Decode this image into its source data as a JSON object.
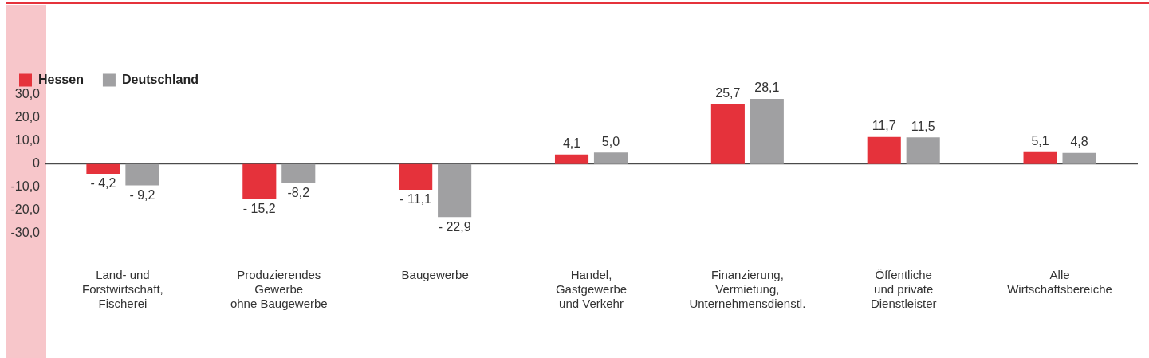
{
  "chart_data": {
    "type": "bar",
    "categories": [
      "Land- und\nForstwirtschaft,\nFischerei",
      "Produzierendes\nGewerbe\nohne Baugewerbe",
      "Baugewerbe",
      "Handel,\nGastgewerbe\nund Verkehr",
      "Finanzierung,\nVermietung,\nUnternehmensdienstl.",
      "Öffentliche\nund private\nDienstleister",
      "Alle\nWirtschaftsbereiche"
    ],
    "series": [
      {
        "name": "Hessen",
        "color": "#e5323b",
        "values": [
          -4.2,
          -15.2,
          -11.1,
          4.1,
          25.7,
          11.7,
          5.1
        ],
        "value_labels": [
          "- 4,2",
          "- 15,2",
          "- 11,1",
          "4,1",
          "25,7",
          "11,7",
          "5,1"
        ]
      },
      {
        "name": "Deutschland",
        "color": "#a0a0a2",
        "values": [
          -9.2,
          -8.2,
          -22.9,
          5.0,
          28.1,
          11.5,
          4.8
        ],
        "value_labels": [
          "- 9,2",
          "-8,2",
          "- 22,9",
          "5,0",
          "28,1",
          "11,5",
          "4,8"
        ]
      }
    ],
    "ylim": [
      -30,
      30
    ],
    "yticks": [
      {
        "value": 30,
        "label": "30,0"
      },
      {
        "value": 20,
        "label": "20,0"
      },
      {
        "value": 10,
        "label": "10,0"
      },
      0,
      {
        "value": -10,
        "label": "-10,0"
      },
      {
        "value": -20,
        "label": "-20,0"
      },
      {
        "value": -30,
        "label": "-30,0"
      }
    ],
    "ref_lines": [
      {
        "axis": "y",
        "value": 0,
        "color": "#222222"
      }
    ],
    "grid": false,
    "legend": "top left"
  }
}
